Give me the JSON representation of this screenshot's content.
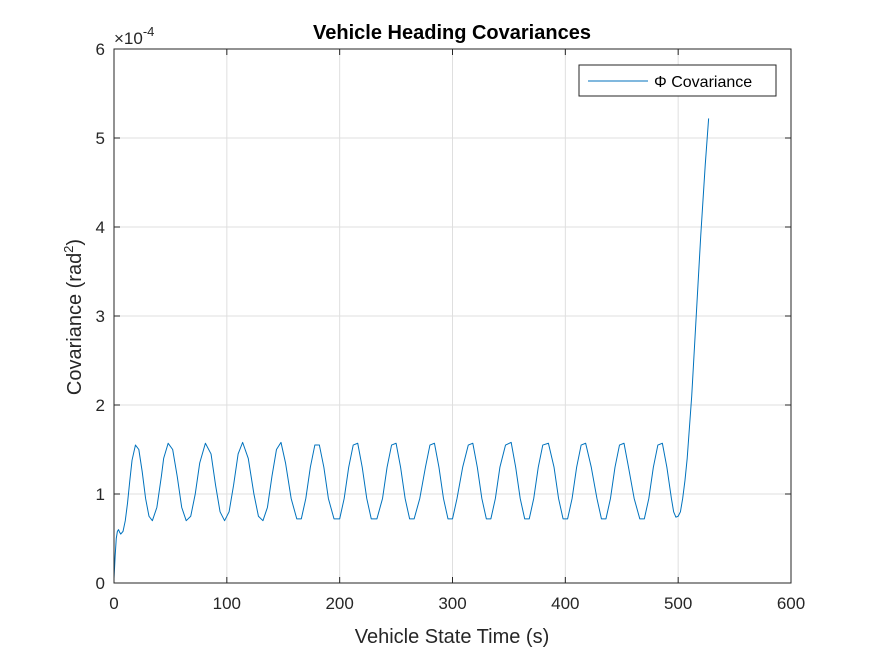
{
  "chart_data": {
    "type": "line",
    "title": "Vehicle Heading Covariances",
    "xlabel": "Vehicle State Time (s)",
    "ylabel_main": "Covariance (rad",
    "ylabel_sup": "2",
    "ylabel_close": ")",
    "y_exponent_prefix": "×10",
    "y_exponent_power": "-4",
    "xlim": [
      0,
      600
    ],
    "ylim": [
      0,
      6
    ],
    "xticks": [
      0,
      100,
      200,
      300,
      400,
      500,
      600
    ],
    "yticks": [
      0,
      1,
      2,
      3,
      4,
      5,
      6
    ],
    "xtick_labels": [
      "0",
      "100",
      "200",
      "300",
      "400",
      "500",
      "600"
    ],
    "ytick_labels": [
      "0",
      "1",
      "2",
      "3",
      "4",
      "5",
      "6"
    ],
    "grid": true,
    "legend_placement": "top-right",
    "series": [
      {
        "name": "Φ Covariance",
        "color": "#0072BD",
        "x": [
          0,
          1,
          2,
          3,
          4,
          5,
          6,
          8,
          10,
          12,
          14,
          16,
          19,
          22,
          25,
          28,
          31,
          34,
          38,
          42,
          44,
          48,
          52,
          56,
          60,
          64,
          68,
          72,
          76,
          81,
          86,
          90,
          94,
          98,
          102,
          106,
          110,
          114,
          119,
          124,
          128,
          132,
          136,
          140,
          144,
          148,
          152,
          157,
          162,
          166,
          170,
          174,
          178,
          182,
          186,
          190,
          195,
          200,
          204,
          208,
          212,
          216,
          220,
          224,
          228,
          233,
          238,
          242,
          246,
          250,
          254,
          258,
          262,
          266,
          271,
          276,
          280,
          284,
          288,
          292,
          296,
          300,
          304,
          309,
          314,
          318,
          322,
          326,
          330,
          334,
          338,
          342,
          347,
          352,
          356,
          360,
          364,
          368,
          372,
          376,
          380,
          385,
          390,
          394,
          398,
          402,
          406,
          410,
          414,
          418,
          423,
          428,
          432,
          436,
          440,
          444,
          448,
          452,
          456,
          461,
          466,
          470,
          474,
          478,
          482,
          486,
          490,
          494,
          496,
          498,
          500,
          502,
          504,
          506,
          508,
          512,
          516,
          520,
          524,
          527
        ],
        "values": [
          0.05,
          0.3,
          0.5,
          0.58,
          0.6,
          0.57,
          0.55,
          0.58,
          0.7,
          0.9,
          1.15,
          1.38,
          1.55,
          1.5,
          1.25,
          0.95,
          0.75,
          0.7,
          0.85,
          1.2,
          1.4,
          1.57,
          1.5,
          1.2,
          0.85,
          0.7,
          0.75,
          1.0,
          1.35,
          1.57,
          1.45,
          1.1,
          0.8,
          0.7,
          0.8,
          1.1,
          1.45,
          1.58,
          1.4,
          1.0,
          0.75,
          0.7,
          0.85,
          1.2,
          1.5,
          1.58,
          1.35,
          0.95,
          0.72,
          0.72,
          0.95,
          1.3,
          1.55,
          1.55,
          1.3,
          0.95,
          0.72,
          0.72,
          0.95,
          1.3,
          1.55,
          1.57,
          1.3,
          0.95,
          0.72,
          0.72,
          0.95,
          1.3,
          1.55,
          1.57,
          1.3,
          0.95,
          0.72,
          0.72,
          0.95,
          1.3,
          1.55,
          1.57,
          1.3,
          0.95,
          0.72,
          0.72,
          0.95,
          1.3,
          1.55,
          1.57,
          1.3,
          0.95,
          0.72,
          0.72,
          0.95,
          1.3,
          1.55,
          1.58,
          1.3,
          0.95,
          0.72,
          0.72,
          0.95,
          1.3,
          1.55,
          1.57,
          1.3,
          0.95,
          0.72,
          0.72,
          0.95,
          1.3,
          1.55,
          1.57,
          1.3,
          0.95,
          0.72,
          0.72,
          0.95,
          1.3,
          1.55,
          1.57,
          1.3,
          0.95,
          0.72,
          0.72,
          0.95,
          1.3,
          1.55,
          1.57,
          1.3,
          0.95,
          0.8,
          0.74,
          0.75,
          0.8,
          0.95,
          1.15,
          1.4,
          2.1,
          3.0,
          3.9,
          4.7,
          5.22
        ]
      }
    ]
  }
}
